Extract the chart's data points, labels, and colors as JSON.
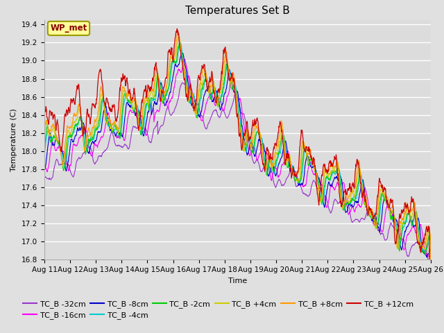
{
  "title": "Temperatures Set B",
  "xlabel": "Time",
  "ylabel": "Temperature (C)",
  "ylim": [
    16.8,
    19.45
  ],
  "background_color": "#e0e0e0",
  "plot_bg_color": "#dcdcdc",
  "grid_color": "#ffffff",
  "series": [
    {
      "label": "TC_B -32cm",
      "color": "#9933cc"
    },
    {
      "label": "TC_B -16cm",
      "color": "#ff00ff"
    },
    {
      "label": "TC_B -8cm",
      "color": "#0000cc"
    },
    {
      "label": "TC_B -4cm",
      "color": "#00cccc"
    },
    {
      "label": "TC_B -2cm",
      "color": "#00cc00"
    },
    {
      "label": "TC_B +4cm",
      "color": "#cccc00"
    },
    {
      "label": "TC_B +8cm",
      "color": "#ff9900"
    },
    {
      "label": "TC_B +12cm",
      "color": "#cc0000"
    }
  ],
  "xtick_labels": [
    "Aug 11",
    "Aug 12",
    "Aug 13",
    "Aug 14",
    "Aug 15",
    "Aug 16",
    "Aug 17",
    "Aug 18",
    "Aug 19",
    "Aug 20",
    "Aug 21",
    "Aug 22",
    "Aug 23",
    "Aug 24",
    "Aug 25",
    "Aug 26"
  ],
  "ytick_values": [
    16.8,
    17.0,
    17.2,
    17.4,
    17.6,
    17.8,
    18.0,
    18.2,
    18.4,
    18.6,
    18.8,
    19.0,
    19.2,
    19.4
  ],
  "wp_met_box_color": "#ffff99",
  "wp_met_text_color": "#880000",
  "wp_met_edge_color": "#999900",
  "legend_fontsize": 8,
  "title_fontsize": 11,
  "axis_fontsize": 8,
  "tick_fontsize": 7.5
}
